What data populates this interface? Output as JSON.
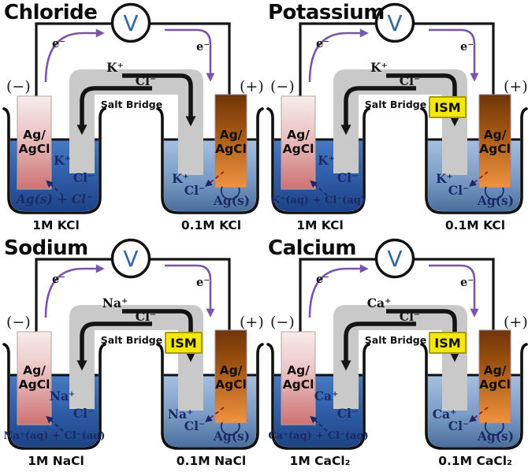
{
  "shared": {
    "voltmeter_label": "V",
    "electron_label": "e⁻",
    "neg_terminal": "(−)",
    "pos_terminal": "(+)",
    "salt_bridge_label": "Salt Bridge",
    "ism_label": "ISM",
    "electrode_line1": "Ag/",
    "electrode_line2": "AgCl",
    "colors": {
      "wire_black": "#141414",
      "electron_purple": "#7a55ae",
      "voltmeter_blue": "#33679e",
      "salt_bridge_gray": "#c9c9c9",
      "ism_yellow": "#f3e70d",
      "solution_1m_top": "#477bc3",
      "solution_1m_bottom": "#1d4385",
      "solution_01m_top": "#a7c0e0",
      "solution_01m_bottom": "#4b6f9d",
      "electrode_pink": "#cd7272",
      "electrode_orange": "#ef9340",
      "ion_navy": "#1b2a66",
      "dashed_red": "#9b1f1f"
    }
  },
  "panels": [
    {
      "title": "Chloride",
      "bridge_cation": "K⁺",
      "bridge_anion": "Cl⁻",
      "has_ism": false,
      "left_beaker": {
        "cation": "K⁺",
        "anion": "Cl⁻",
        "reaction": "Ag(s) + Cl⁻",
        "concentration": "1M KCl"
      },
      "right_beaker": {
        "cation": "K⁺",
        "anion": "Cl⁻",
        "deposit": "Ag(s)",
        "concentration": "0.1M KCl"
      }
    },
    {
      "title": "Potassium",
      "bridge_cation": "K⁺",
      "bridge_anion": "Cl⁻",
      "has_ism": true,
      "left_beaker": {
        "cation": "K⁺",
        "anion": "Cl⁻",
        "reaction": "K⁺(aq) + Cl⁻(aq)",
        "concentration": "1M KCl"
      },
      "right_beaker": {
        "cation": "K⁺",
        "anion": "Cl⁻",
        "deposit": "Ag(s)",
        "concentration": "0.1M KCl"
      }
    },
    {
      "title": "Sodium",
      "bridge_cation": "Na⁺",
      "bridge_anion": "Cl⁻",
      "has_ism": true,
      "left_beaker": {
        "cation": "Na⁺",
        "anion": "Cl⁻",
        "reaction": "Na⁺(aq) + Cl⁻(aq)",
        "concentration": "1M NaCl"
      },
      "right_beaker": {
        "cation": "Na⁺",
        "anion": "Cl⁻",
        "deposit": "Ag(s)",
        "concentration": "0.1M NaCl"
      }
    },
    {
      "title": "Calcium",
      "bridge_cation": "Ca⁺",
      "bridge_anion": "Cl⁻",
      "has_ism": true,
      "left_beaker": {
        "cation": "Ca⁺",
        "anion": "Cl⁻",
        "reaction": "Ca⁺(aq) + Cl⁻(aq)",
        "concentration": "1M CaCl₂"
      },
      "right_beaker": {
        "cation": "Ca⁺",
        "anion": "Cl⁻",
        "deposit": "Ag(s)",
        "concentration": "0.1M CaCl₂"
      }
    }
  ]
}
